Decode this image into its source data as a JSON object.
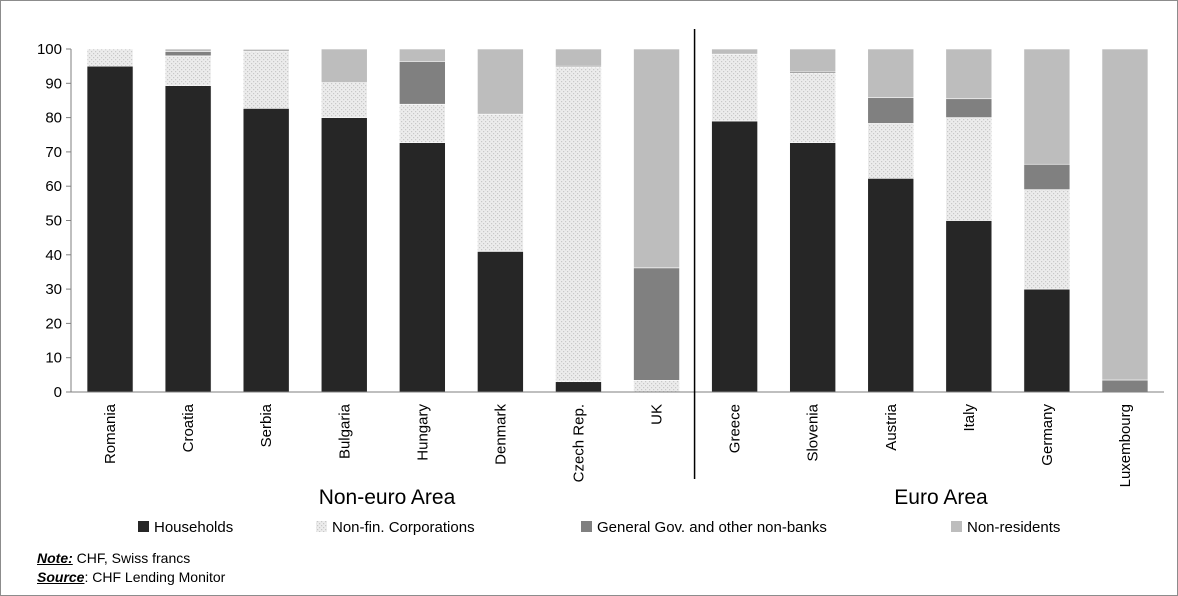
{
  "chart_data": {
    "type": "bar",
    "stacked": true,
    "categories": [
      "Romania",
      "Croatia",
      "Serbia",
      "Bulgaria",
      "Hungary",
      "Denmark",
      "Czech Rep.",
      "UK",
      "Greece",
      "Slovenia",
      "Austria",
      "Italy",
      "Germany",
      "Luxembourg"
    ],
    "series": [
      {
        "name": "Households",
        "color": "#262626",
        "pattern": "solid",
        "values": [
          95,
          89.3,
          82.7,
          80,
          72.7,
          41,
          3,
          0,
          79,
          72.7,
          62.3,
          50,
          30,
          0
        ]
      },
      {
        "name": "Non-fin. Corporations",
        "color": "#e4e4e4",
        "pattern": "dotted",
        "values": [
          5,
          8.7,
          16.6,
          10.2,
          11.2,
          40,
          91.7,
          3.4,
          19.5,
          20.3,
          16,
          30,
          29,
          0
        ]
      },
      {
        "name": "General Gov. and other non-banks",
        "color": "#808080",
        "pattern": "solid",
        "values": [
          0,
          1.3,
          0.4,
          0,
          12.5,
          0,
          0.3,
          32.8,
          0,
          0.5,
          7.5,
          5.5,
          7.4,
          3.5
        ]
      },
      {
        "name": "Non-residents",
        "color": "#bdbdbd",
        "pattern": "solid",
        "values": [
          0,
          0.7,
          0.3,
          9.8,
          3.6,
          19,
          5,
          63.8,
          1.5,
          6.5,
          14.2,
          14.5,
          33.6,
          96.5
        ]
      }
    ],
    "ylim": [
      0,
      100
    ],
    "yticks": [
      "0",
      "10",
      "20",
      "30",
      "40",
      "50",
      "60",
      "70",
      "80",
      "90",
      "100"
    ],
    "groups": [
      {
        "label": "Non-euro Area",
        "categories": [
          "Romania",
          "Croatia",
          "Serbia",
          "Bulgaria",
          "Hungary",
          "Denmark",
          "Czech Rep.",
          "UK"
        ]
      },
      {
        "label": "Euro Area",
        "categories": [
          "Greece",
          "Slovenia",
          "Austria",
          "Italy",
          "Germany",
          "Luxembourg"
        ]
      }
    ],
    "grid": false,
    "legend": "bottom"
  },
  "notes": {
    "note_label": "Note:",
    "note_text": " CHF, Swiss francs",
    "source_label": "Source",
    "source_text": ": CHF Lending Monitor"
  }
}
